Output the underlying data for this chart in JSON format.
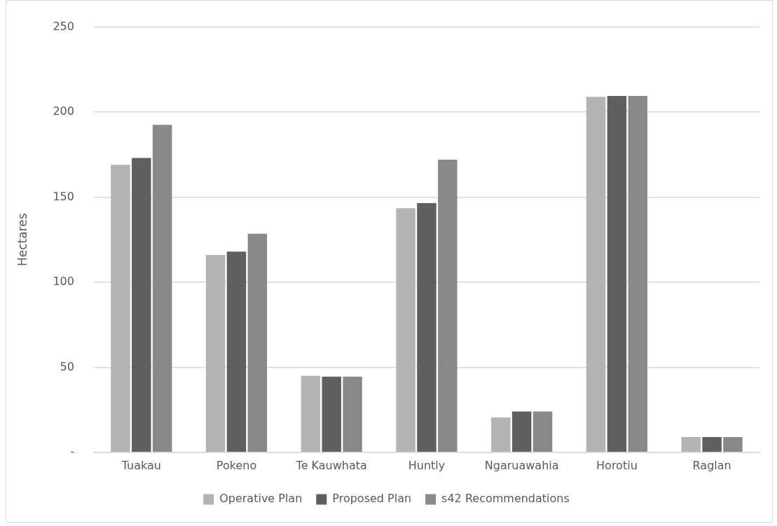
{
  "chart_data": {
    "type": "bar",
    "categories": [
      "Tuakau",
      "Pokeno",
      "Te Kauwhata",
      "Huntly",
      "Ngaruawahia",
      "Horotiu",
      "Raglan"
    ],
    "series": [
      {
        "name": "Operative Plan",
        "color": "#b3b3b3",
        "values": [
          169,
          116,
          45,
          143.5,
          20.5,
          209,
          9
        ]
      },
      {
        "name": "Proposed Plan",
        "color": "#5f5f5f",
        "values": [
          173,
          118,
          44.5,
          146.5,
          24,
          209.5,
          9
        ]
      },
      {
        "name": "s42 Recommendations",
        "color": "#898989",
        "values": [
          192.5,
          128.5,
          44.5,
          172,
          24,
          209.5,
          9
        ]
      }
    ],
    "ylabel": "Hectares",
    "ylim": [
      0,
      250
    ],
    "yticks": [
      {
        "value": 0,
        "label": "-"
      },
      50,
      100,
      150,
      200,
      250
    ],
    "grid": "y",
    "legend": "bottom"
  }
}
